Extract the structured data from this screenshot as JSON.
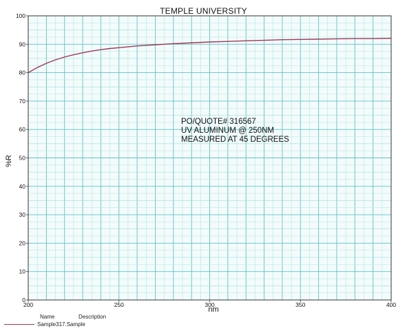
{
  "chart_data": {
    "type": "line",
    "title": "TEMPLE UNIVERSITY",
    "xlabel": "nm",
    "ylabel": "%R",
    "xlim": [
      200,
      400
    ],
    "ylim": [
      0,
      100
    ],
    "x_ticks": [
      "200",
      "250",
      "300",
      "350",
      "400"
    ],
    "y_ticks": [
      "0",
      "10",
      "20",
      "30",
      "40",
      "50",
      "60",
      "70",
      "80",
      "90",
      "100"
    ],
    "grid": true,
    "annotation": [
      "PO/QUOTE# 316567",
      "UV ALUMINUM @ 250NM",
      "MEASURED AT 45 DEGREES"
    ],
    "legend": {
      "placement": "bottom-left",
      "headers": {
        "name": "Name",
        "description": "Description"
      }
    },
    "series": [
      {
        "name": "Sample317.Sample",
        "color": "#9b3a55",
        "x": [
          200,
          205,
          210,
          215,
          220,
          225,
          230,
          235,
          240,
          245,
          250,
          255,
          260,
          265,
          270,
          280,
          290,
          300,
          310,
          320,
          330,
          340,
          350,
          360,
          370,
          380,
          390,
          400
        ],
        "y": [
          80.0,
          81.8,
          83.3,
          84.5,
          85.5,
          86.3,
          87.0,
          87.6,
          88.1,
          88.5,
          88.8,
          89.1,
          89.4,
          89.6,
          89.8,
          90.2,
          90.5,
          90.8,
          91.0,
          91.2,
          91.4,
          91.6,
          91.7,
          91.8,
          91.9,
          92.0,
          92.0,
          92.1
        ]
      }
    ]
  },
  "legend_row": {
    "name": "Sample317.Sample"
  }
}
